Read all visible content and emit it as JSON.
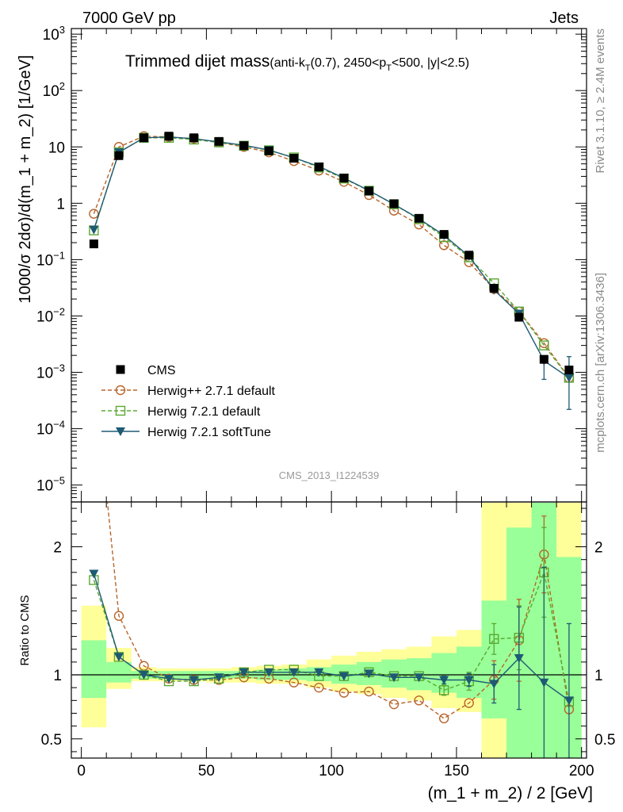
{
  "header": {
    "left": "7000 GeV pp",
    "right": "Jets"
  },
  "main_title": "Trimmed dijet mass",
  "sub_title": {
    "pre": "(anti-k",
    "sub1": "T",
    "mid": "(0.7), 2450<p",
    "sub2": "T",
    "post": "<500, |y|<2.5)"
  },
  "watermark": "CMS_2013_I1224539",
  "side_labels": {
    "rivet": "Rivet 3.1.10, ≥ 2.4M events",
    "mcplots": "mcplots.cern.ch [arXiv:1306.3436]"
  },
  "chart_data": [
    {
      "type": "line",
      "panel": "main",
      "yscale": "log",
      "ylabel": "1000/σ 2dσ)/d(m_1 + m_2) [1/GeV]",
      "xlim": [
        -4,
        202
      ],
      "ylim_exp": [
        -5.3,
        3.1
      ],
      "ytick_labels": [
        {
          "base": "10",
          "exp": "−5",
          "value": 1e-05
        },
        {
          "base": "10",
          "exp": "−4",
          "value": 0.0001
        },
        {
          "base": "10",
          "exp": "−3",
          "value": 0.001
        },
        {
          "base": "10",
          "exp": "−2",
          "value": 0.01
        },
        {
          "base": "10",
          "exp": "−1",
          "value": 0.1
        },
        {
          "base": "1",
          "exp": "",
          "value": 1
        },
        {
          "base": "10",
          "exp": "",
          "value": 10
        },
        {
          "base": "10",
          "exp": "2",
          "value": 100
        },
        {
          "base": "10",
          "exp": "3",
          "value": 1000
        }
      ],
      "x": [
        5,
        15,
        25,
        35,
        45,
        55,
        65,
        75,
        85,
        95,
        105,
        115,
        125,
        135,
        145,
        155,
        165,
        175,
        185,
        195
      ],
      "series": [
        {
          "name": "CMS",
          "color": "#000000",
          "marker": "square",
          "values": [
            0.19,
            7.0,
            14.5,
            15.5,
            14.5,
            12.5,
            10.5,
            8.5,
            6.3,
            4.4,
            2.8,
            1.65,
            0.98,
            0.54,
            0.28,
            0.12,
            0.031,
            0.0095,
            0.0017,
            0.0011
          ]
        },
        {
          "name": "Herwig++ 2.7.1 default",
          "color": "#b8652b",
          "marker": "circle-open",
          "dash": true,
          "values": [
            0.65,
            10.0,
            15.5,
            15.0,
            14.0,
            12.0,
            10.0,
            8.0,
            5.6,
            3.8,
            2.4,
            1.4,
            0.74,
            0.42,
            0.18,
            0.09,
            0.03,
            0.012,
            0.0033,
            0.0008
          ]
        },
        {
          "name": "Herwig 7.2.1 default",
          "color": "#5aa832",
          "marker": "square-open",
          "dash": true,
          "values": [
            0.33,
            8.0,
            14.5,
            14.5,
            13.5,
            12.0,
            10.5,
            8.7,
            6.5,
            4.3,
            2.75,
            1.67,
            0.96,
            0.52,
            0.25,
            0.11,
            0.038,
            0.012,
            0.003,
            0.0008
          ]
        },
        {
          "name": "Herwig 7.2.1 softTune",
          "color": "#1e5a73",
          "marker": "triangle-down",
          "values": [
            0.34,
            8.0,
            14.5,
            15.0,
            14.0,
            12.3,
            10.7,
            8.8,
            6.4,
            4.5,
            2.8,
            1.68,
            0.96,
            0.53,
            0.27,
            0.115,
            0.029,
            0.011,
            0.0016,
            0.0008
          ],
          "err_up": [
            0,
            0,
            0,
            0,
            0,
            0,
            0,
            0,
            0,
            0,
            0,
            0,
            0,
            0,
            0,
            0,
            0,
            0,
            0,
            0.0011
          ],
          "err_down": [
            0,
            0,
            0,
            0,
            0,
            0,
            0,
            0,
            0,
            0,
            0,
            0,
            0,
            0,
            0,
            0,
            0,
            0,
            0.00085,
            0.00058
          ]
        }
      ]
    },
    {
      "type": "line",
      "panel": "ratio",
      "ylabel": "Ratio to CMS",
      "xlabel": "(m_1 + m_2) / 2 [GeV]",
      "xlim": [
        -4,
        202
      ],
      "ylim": [
        0.35,
        2.35
      ],
      "xtick_labels": [
        "0",
        "50",
        "100",
        "150",
        "200"
      ],
      "xtick_values": [
        0,
        50,
        100,
        150,
        200
      ],
      "ytick_labels": [
        "0.5",
        "1",
        "2"
      ],
      "ytick_values": [
        0.5,
        1,
        2
      ],
      "bins": [
        [
          0,
          10
        ],
        [
          10,
          20
        ],
        [
          20,
          30
        ],
        [
          30,
          40
        ],
        [
          40,
          50
        ],
        [
          50,
          60
        ],
        [
          60,
          70
        ],
        [
          70,
          80
        ],
        [
          80,
          90
        ],
        [
          90,
          100
        ],
        [
          100,
          110
        ],
        [
          110,
          120
        ],
        [
          120,
          130
        ],
        [
          130,
          140
        ],
        [
          140,
          150
        ],
        [
          150,
          160
        ],
        [
          160,
          170
        ],
        [
          170,
          180
        ],
        [
          180,
          190
        ],
        [
          190,
          200
        ]
      ],
      "band_yellow": [
        [
          0.59,
          1.54
        ],
        [
          0.89,
          1.21
        ],
        [
          0.95,
          1.06
        ],
        [
          0.95,
          1.05
        ],
        [
          0.95,
          1.05
        ],
        [
          0.94,
          1.05
        ],
        [
          0.94,
          1.06
        ],
        [
          0.93,
          1.07
        ],
        [
          0.93,
          1.08
        ],
        [
          0.9,
          1.12
        ],
        [
          0.87,
          1.15
        ],
        [
          0.85,
          1.18
        ],
        [
          0.82,
          1.2
        ],
        [
          0.8,
          1.22
        ],
        [
          0.74,
          1.3
        ],
        [
          0.71,
          1.35
        ],
        [
          0.35,
          2.35
        ],
        [
          0.35,
          2.35
        ],
        [
          0.35,
          2.35
        ],
        [
          0.35,
          2.35
        ]
      ],
      "band_green": [
        [
          0.82,
          1.27
        ],
        [
          0.94,
          1.1
        ],
        [
          0.97,
          1.03
        ],
        [
          0.97,
          1.03
        ],
        [
          0.97,
          1.03
        ],
        [
          0.97,
          1.03
        ],
        [
          0.97,
          1.03
        ],
        [
          0.96,
          1.04
        ],
        [
          0.96,
          1.05
        ],
        [
          0.95,
          1.06
        ],
        [
          0.93,
          1.08
        ],
        [
          0.92,
          1.1
        ],
        [
          0.9,
          1.12
        ],
        [
          0.88,
          1.13
        ],
        [
          0.86,
          1.17
        ],
        [
          0.82,
          1.22
        ],
        [
          0.66,
          1.58
        ],
        [
          0.35,
          2.15
        ],
        [
          0.35,
          2.35
        ],
        [
          0.35,
          1.92
        ]
      ],
      "series": [
        {
          "name": "Herwig++ 2.7.1 default",
          "color": "#b8652b",
          "marker": "circle-open",
          "dash": true,
          "values": [
            3.4,
            1.46,
            1.07,
            0.97,
            0.96,
            0.96,
            0.98,
            0.97,
            0.94,
            0.9,
            0.86,
            0.87,
            0.77,
            0.8,
            0.66,
            0.78,
            0.96,
            1.27,
            1.94,
            0.73
          ],
          "err_up": [
            0,
            0,
            0,
            0,
            0,
            0,
            0,
            0,
            0,
            0,
            0,
            0,
            0,
            0,
            0,
            0,
            0.15,
            0.32,
            0.3,
            0
          ],
          "err_down": [
            0,
            0,
            0,
            0,
            0,
            0,
            0,
            0,
            0,
            0,
            0,
            0,
            0,
            0,
            0,
            0,
            0.15,
            0.32,
            0.3,
            0
          ]
        },
        {
          "name": "Herwig 7.2.1 default",
          "color": "#5aa832",
          "marker": "square-open",
          "dash": true,
          "values": [
            1.74,
            1.14,
            1.0,
            0.95,
            0.95,
            0.97,
            1.02,
            1.04,
            1.04,
            0.99,
            0.99,
            1.02,
            0.99,
            0.99,
            0.88,
            0.95,
            1.28,
            1.29,
            1.8,
            0.79
          ],
          "err_up": [
            0,
            0,
            0,
            0,
            0,
            0,
            0,
            0,
            0,
            0,
            0,
            0,
            0,
            0,
            0.04,
            0.07,
            0.12,
            0.25,
            0.35,
            0
          ],
          "err_down": [
            0,
            0,
            0,
            0,
            0,
            0,
            0,
            0,
            0,
            0,
            0,
            0,
            0,
            0,
            0.04,
            0.07,
            0.12,
            0.25,
            0.35,
            0
          ]
        },
        {
          "name": "Herwig 7.2.1 softTune",
          "color": "#1e5a73",
          "marker": "triangle-down",
          "values": [
            1.79,
            1.14,
            1.0,
            0.97,
            0.96,
            0.98,
            1.02,
            1.02,
            1.02,
            1.02,
            0.99,
            1.01,
            0.98,
            0.98,
            0.96,
            0.96,
            0.93,
            1.13,
            0.94,
            0.8
          ],
          "err_up": [
            0,
            0,
            0,
            0,
            0,
            0,
            0,
            0,
            0,
            0,
            0,
            0,
            0,
            0,
            0.03,
            0.05,
            0.15,
            0.4,
            0.9,
            0.6
          ],
          "err_down": [
            0,
            0,
            0,
            0,
            0,
            0,
            0,
            0,
            0,
            0,
            0,
            0,
            0,
            0,
            0.03,
            0.05,
            0.15,
            0.4,
            0.6,
            0.45
          ]
        }
      ]
    }
  ],
  "legend": [
    {
      "name": "CMS",
      "color": "#000000",
      "marker": "square"
    },
    {
      "name": "Herwig++ 2.7.1 default",
      "color": "#b8652b",
      "marker": "circle-open",
      "dash": true
    },
    {
      "name": "Herwig 7.2.1 default",
      "color": "#5aa832",
      "marker": "square-open",
      "dash": true
    },
    {
      "name": "Herwig 7.2.1 softTune",
      "color": "#1e5a73",
      "marker": "triangle-down"
    }
  ]
}
